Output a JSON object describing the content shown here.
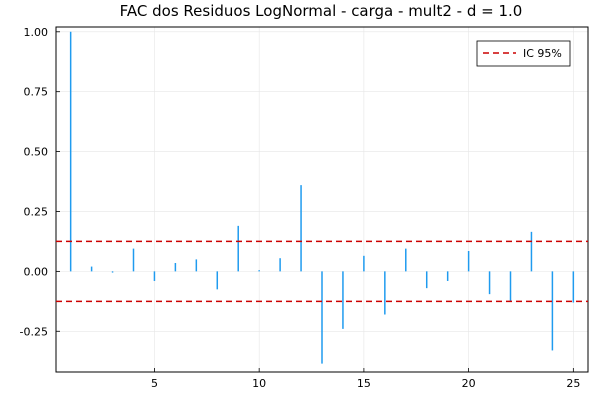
{
  "chart_data": {
    "type": "bar",
    "title": "FAC dos Residuos  LogNormal - carga - mult2 - d = 1.0",
    "xlabel": "",
    "ylabel": "",
    "x": [
      1,
      2,
      3,
      4,
      5,
      6,
      7,
      8,
      9,
      10,
      11,
      12,
      13,
      14,
      15,
      16,
      17,
      18,
      19,
      20,
      21,
      22,
      23,
      24,
      25
    ],
    "values": [
      1.0,
      0.02,
      -0.005,
      0.095,
      -0.04,
      0.035,
      0.05,
      -0.075,
      0.19,
      0.005,
      0.055,
      0.36,
      -0.385,
      -0.24,
      0.065,
      -0.18,
      0.095,
      -0.07,
      -0.04,
      0.085,
      -0.095,
      -0.125,
      0.165,
      -0.33,
      -0.13
    ],
    "xlim": [
      0.3,
      25.7
    ],
    "ylim": [
      -0.42,
      1.02
    ],
    "xticks": [
      5,
      10,
      15,
      20,
      25
    ],
    "xtick_labels": [
      "5",
      "10",
      "15",
      "20",
      "25"
    ],
    "yticks": [
      1.0,
      0.75,
      0.5,
      0.25,
      0.0,
      -0.25
    ],
    "ytick_labels": [
      "1.00",
      "0.75",
      "0.50",
      "0.25",
      "0.00",
      "-0.25"
    ],
    "confidence_band": {
      "name": "IC 95%",
      "upper": 0.125,
      "lower": -0.125,
      "color": "#cc0000"
    },
    "bar_color": "#1f9bef",
    "grid": true,
    "legend": {
      "position": "top-right",
      "entries": [
        "IC 95%"
      ]
    }
  }
}
